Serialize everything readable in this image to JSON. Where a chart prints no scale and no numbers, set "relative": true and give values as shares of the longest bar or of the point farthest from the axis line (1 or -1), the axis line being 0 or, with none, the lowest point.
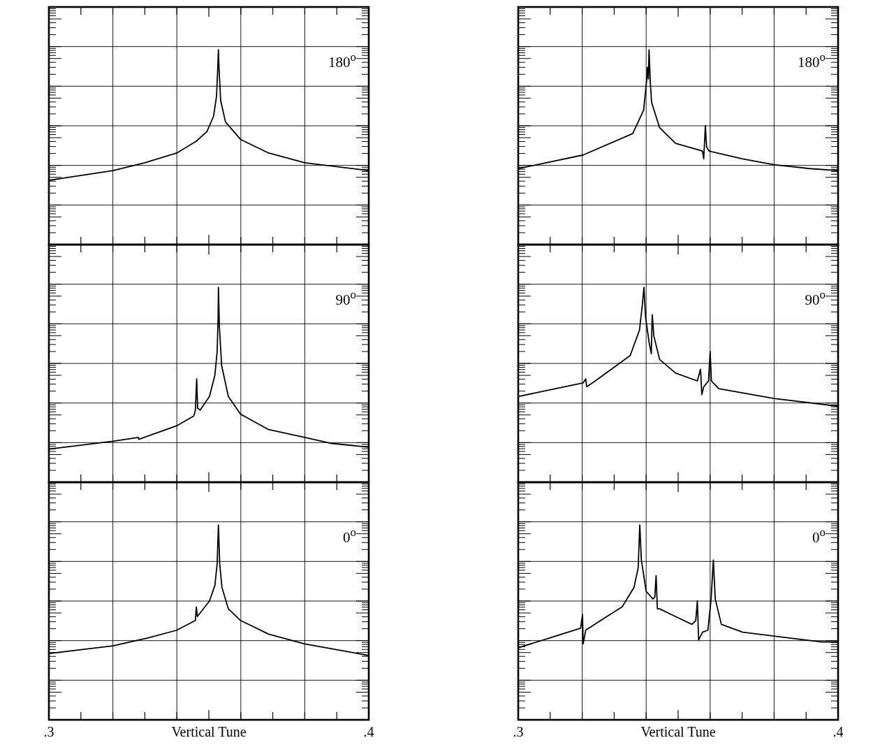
{
  "chart_data": [
    {
      "type": "line",
      "relative": true,
      "xlim": [
        0.3,
        0.4
      ],
      "xticks": [
        {
          "value": 0.3,
          "label": null
        },
        {
          "value": 0.31,
          "label": null
        },
        {
          "value": 0.32,
          "label": null
        },
        {
          "value": 0.33,
          "label": null
        },
        {
          "value": 0.34,
          "label": null
        },
        {
          "value": 0.35,
          "label": null
        },
        {
          "value": 0.36,
          "label": null
        },
        {
          "value": 0.37,
          "label": null
        },
        {
          "value": 0.38,
          "label": null
        },
        {
          "value": 0.39,
          "label": null
        },
        {
          "value": 0.4,
          "label": null
        }
      ],
      "tick_labels": false,
      "grid": true,
      "annotations": [
        "180$^{o}$"
      ],
      "series": [
        {
          "color": "#000000",
          "x": [
            0.3,
            0.32,
            0.33,
            0.34,
            0.346,
            0.3494,
            0.3515,
            0.3524,
            0.3528,
            0.353,
            0.3532,
            0.3537,
            0.3552,
            0.3599,
            0.3687,
            0.38,
            0.4
          ],
          "values": [
            0.33,
            0.38,
            0.42,
            0.47,
            0.53,
            0.58,
            0.66,
            0.76,
            0.91,
            1,
            0.9,
            0.74,
            0.63,
            0.54,
            0.47,
            0.42,
            0.38
          ]
        }
      ]
    },
    {
      "type": "line",
      "relative": true,
      "xlim": [
        0.3,
        0.4
      ],
      "xticks": [
        {
          "value": 0.3,
          "label": null
        },
        {
          "value": 0.31,
          "label": null
        },
        {
          "value": 0.32,
          "label": null
        },
        {
          "value": 0.33,
          "label": null
        },
        {
          "value": 0.34,
          "label": null
        },
        {
          "value": 0.35,
          "label": null
        },
        {
          "value": 0.36,
          "label": null
        },
        {
          "value": 0.37,
          "label": null
        },
        {
          "value": 0.38,
          "label": null
        },
        {
          "value": 0.39,
          "label": null
        },
        {
          "value": 0.4,
          "label": null
        }
      ],
      "tick_labels": false,
      "grid": true,
      "annotations": [
        "180$^{o}$"
      ],
      "series": [
        {
          "color": "#000000",
          "x": [
            0.3,
            0.3203,
            0.3358,
            0.3392,
            0.3402,
            0.3404,
            0.3407,
            0.3409,
            0.3413,
            0.3417,
            0.3442,
            0.3492,
            0.3576,
            0.358,
            0.3585,
            0.3589,
            0.3597,
            0.3702,
            0.3799,
            0.3912,
            0.4
          ],
          "values": [
            0.39,
            0.46,
            0.57,
            0.69,
            0.85,
            0.91,
            0.85,
            1,
            0.83,
            0.73,
            0.6,
            0.52,
            0.48,
            0.44,
            0.61,
            0.5,
            0.48,
            0.44,
            0.41,
            0.39,
            0.38
          ]
        }
      ]
    },
    {
      "type": "line",
      "relative": true,
      "xlim": [
        0.3,
        0.4
      ],
      "xticks": [
        {
          "value": 0.3,
          "label": null
        },
        {
          "value": 0.31,
          "label": null
        },
        {
          "value": 0.32,
          "label": null
        },
        {
          "value": 0.33,
          "label": null
        },
        {
          "value": 0.34,
          "label": null
        },
        {
          "value": 0.35,
          "label": null
        },
        {
          "value": 0.36,
          "label": null
        },
        {
          "value": 0.37,
          "label": null
        },
        {
          "value": 0.38,
          "label": null
        },
        {
          "value": 0.39,
          "label": null
        },
        {
          "value": 0.4,
          "label": null
        }
      ],
      "tick_labels": false,
      "grid": true,
      "annotations": [
        "90$^{o}$"
      ],
      "series": [
        {
          "color": "#000000",
          "x": [
            0.3,
            0.32,
            0.328,
            0.3281,
            0.34,
            0.3453,
            0.3458,
            0.3462,
            0.3465,
            0.3473,
            0.3502,
            0.3519,
            0.3526,
            0.3529,
            0.353,
            0.3533,
            0.354,
            0.3561,
            0.3599,
            0.3687,
            0.38,
            0.388,
            0.4
          ],
          "values": [
            0.17,
            0.21,
            0.23,
            0.22,
            0.29,
            0.34,
            0.37,
            0.53,
            0.38,
            0.37,
            0.44,
            0.55,
            0.67,
            0.84,
            1,
            0.8,
            0.6,
            0.44,
            0.35,
            0.27,
            0.23,
            0.2,
            0.18
          ]
        }
      ]
    },
    {
      "type": "line",
      "relative": true,
      "xlim": [
        0.3,
        0.4
      ],
      "xticks": [
        {
          "value": 0.3,
          "label": null
        },
        {
          "value": 0.31,
          "label": null
        },
        {
          "value": 0.32,
          "label": null
        },
        {
          "value": 0.33,
          "label": null
        },
        {
          "value": 0.34,
          "label": null
        },
        {
          "value": 0.35,
          "label": null
        },
        {
          "value": 0.36,
          "label": null
        },
        {
          "value": 0.37,
          "label": null
        },
        {
          "value": 0.38,
          "label": null
        },
        {
          "value": 0.39,
          "label": null
        },
        {
          "value": 0.4,
          "label": null
        }
      ],
      "tick_labels": false,
      "grid": true,
      "annotations": [
        "90$^{o}$"
      ],
      "series": [
        {
          "color": "#000000",
          "x": [
            0.3,
            0.3203,
            0.3211,
            0.3214,
            0.3241,
            0.335,
            0.3379,
            0.3388,
            0.3393,
            0.3398,
            0.3409,
            0.3416,
            0.3419,
            0.3424,
            0.3442,
            0.3492,
            0.356,
            0.357,
            0.3574,
            0.358,
            0.3595,
            0.36,
            0.3604,
            0.3627,
            0.3799,
            0.4
          ],
          "values": [
            0.44,
            0.51,
            0.53,
            0.49,
            0.52,
            0.65,
            0.78,
            0.91,
            1,
            0.85,
            0.72,
            0.66,
            0.86,
            0.75,
            0.63,
            0.56,
            0.52,
            0.58,
            0.45,
            0.49,
            0.52,
            0.67,
            0.52,
            0.48,
            0.43,
            0.39
          ]
        }
      ]
    },
    {
      "type": "line",
      "relative": true,
      "xlim": [
        0.3,
        0.4
      ],
      "xticks": [
        {
          "value": 0.3,
          "label": ".3"
        },
        {
          "value": 0.31,
          "label": null
        },
        {
          "value": 0.32,
          "label": null
        },
        {
          "value": 0.33,
          "label": null
        },
        {
          "value": 0.34,
          "label": null
        },
        {
          "value": 0.35,
          "label": null
        },
        {
          "value": 0.36,
          "label": null
        },
        {
          "value": 0.37,
          "label": null
        },
        {
          "value": 0.38,
          "label": null
        },
        {
          "value": 0.39,
          "label": null
        },
        {
          "value": 0.4,
          "label": ".4"
        }
      ],
      "tick_labels": "x",
      "grid": true,
      "xlabel": "Vertical Tune",
      "annotations": [
        "0$^{o}$"
      ],
      "series": [
        {
          "color": "#000000",
          "x": [
            0.3,
            0.32,
            0.3309,
            0.34,
            0.3458,
            0.3461,
            0.3464,
            0.3502,
            0.3519,
            0.3526,
            0.353,
            0.3534,
            0.3541,
            0.3561,
            0.3599,
            0.3687,
            0.38,
            0.4
          ],
          "values": [
            0.34,
            0.38,
            0.42,
            0.46,
            0.51,
            0.58,
            0.53,
            0.61,
            0.69,
            0.8,
            1,
            0.8,
            0.68,
            0.57,
            0.51,
            0.44,
            0.39,
            0.33
          ]
        }
      ]
    },
    {
      "type": "line",
      "relative": true,
      "xlim": [
        0.3,
        0.4
      ],
      "xticks": [
        {
          "value": 0.3,
          "label": ".3"
        },
        {
          "value": 0.31,
          "label": null
        },
        {
          "value": 0.32,
          "label": null
        },
        {
          "value": 0.33,
          "label": null
        },
        {
          "value": 0.34,
          "label": null
        },
        {
          "value": 0.35,
          "label": null
        },
        {
          "value": 0.36,
          "label": null
        },
        {
          "value": 0.37,
          "label": null
        },
        {
          "value": 0.38,
          "label": null
        },
        {
          "value": 0.39,
          "label": null
        },
        {
          "value": 0.4,
          "label": ".4"
        }
      ],
      "tick_labels": "x",
      "grid": true,
      "xlabel": "Vertical Tune",
      "annotations": [
        "0$^{o}$"
      ],
      "series": [
        {
          "color": "#000000",
          "x": [
            0.3,
            0.3098,
            0.3195,
            0.3201,
            0.3203,
            0.3211,
            0.3258,
            0.3325,
            0.3362,
            0.3375,
            0.338,
            0.3385,
            0.34,
            0.3421,
            0.3427,
            0.3431,
            0.3435,
            0.3442,
            0.3492,
            0.3543,
            0.3555,
            0.356,
            0.3564,
            0.3576,
            0.3593,
            0.3603,
            0.361,
            0.3616,
            0.3635,
            0.3702,
            0.3799,
            0.3945,
            0.4
          ],
          "values": [
            0.37,
            0.42,
            0.47,
            0.54,
            0.39,
            0.46,
            0.51,
            0.58,
            0.68,
            0.78,
            1,
            0.82,
            0.66,
            0.62,
            0.63,
            0.74,
            0.57,
            0.57,
            0.53,
            0.49,
            0.51,
            0.61,
            0.41,
            0.45,
            0.46,
            0.62,
            0.82,
            0.62,
            0.49,
            0.45,
            0.43,
            0.4,
            0.4
          ]
        }
      ]
    }
  ]
}
